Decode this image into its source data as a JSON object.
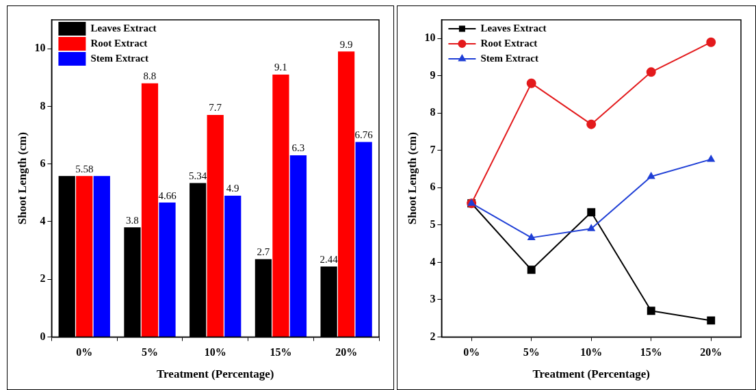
{
  "chart_data": [
    {
      "type": "bar",
      "xlabel": "Treatment (Percentage)",
      "ylabel": "Shoot Length (cm)",
      "categories": [
        "0%",
        "5%",
        "10%",
        "15%",
        "20%"
      ],
      "ylim": [
        0,
        11
      ],
      "yticks": [
        0,
        2,
        4,
        6,
        8,
        10
      ],
      "grid": false,
      "legend": "top left",
      "series": [
        {
          "name": "Leaves Extract",
          "color": "#000000",
          "values": [
            5.58,
            3.8,
            5.34,
            2.7,
            2.44
          ],
          "value_labels": [
            null,
            "3.8",
            "5.34",
            "2.7",
            "2.44"
          ]
        },
        {
          "name": "Root Extract",
          "color": "#ff0000",
          "values": [
            5.58,
            8.8,
            7.7,
            9.1,
            9.9
          ],
          "value_labels": [
            "5.58",
            "8.8",
            "7.7",
            "9.1",
            "9.9"
          ]
        },
        {
          "name": "Stem Extract",
          "color": "#0000ff",
          "values": [
            5.58,
            4.66,
            4.9,
            6.3,
            6.76
          ],
          "value_labels": [
            null,
            "4.66",
            "4.9",
            "6.3",
            "6.76"
          ]
        }
      ]
    },
    {
      "type": "line",
      "xlabel": "Treatment (Percentage)",
      "ylabel": "Shoot Length (cm)",
      "categories": [
        "0%",
        "5%",
        "10%",
        "15%",
        "20%"
      ],
      "ylim": [
        2,
        10.5
      ],
      "yticks": [
        2,
        3,
        4,
        5,
        6,
        7,
        8,
        9,
        10
      ],
      "grid": false,
      "legend": "top left",
      "line_style": "solid",
      "series": [
        {
          "name": "Leaves Extract",
          "color": "#000000",
          "marker": "square",
          "values": [
            5.58,
            3.8,
            5.34,
            2.7,
            2.44
          ]
        },
        {
          "name": "Root Extract",
          "color": "#e31a1c",
          "marker": "circle",
          "values": [
            5.58,
            8.8,
            7.7,
            9.1,
            9.9
          ]
        },
        {
          "name": "Stem Extract",
          "color": "#1f3fd6",
          "marker": "triangle",
          "values": [
            5.58,
            4.66,
            4.9,
            6.3,
            6.76
          ]
        }
      ]
    }
  ]
}
